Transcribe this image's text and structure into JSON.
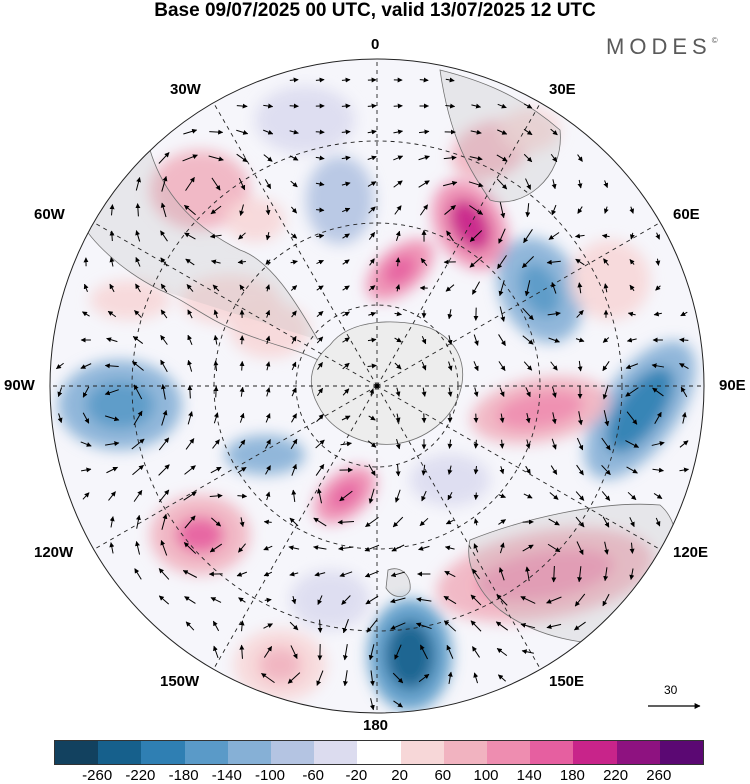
{
  "header": {
    "title": "Base 09/07/2025 00 UTC, valid 13/07/2025 12 UTC",
    "brand": "MODES",
    "brand_mark": "©"
  },
  "map": {
    "projection": "south-polar-stereographic",
    "longitude_labels": {
      "top": "0",
      "top_right": "30E",
      "right_upper": "60E",
      "right": "90E",
      "right_lower": "120E",
      "bottom_right": "150E",
      "bottom": "180",
      "bottom_left": "150W",
      "left_lower": "120W",
      "left": "90W",
      "left_upper": "60W",
      "top_left": "30W"
    },
    "reference_vector_value": "30"
  },
  "colorbar": {
    "colors": [
      "#12415f",
      "#16608c",
      "#2f7fb3",
      "#5a9ac8",
      "#86b0d6",
      "#b4c4e2",
      "#dcdcef",
      "#ffffff",
      "#f7d7d8",
      "#f1b3c0",
      "#ee8db0",
      "#e65fa0",
      "#c8248a",
      "#8e1280",
      "#5b0873"
    ],
    "ticks": [
      "-260",
      "-220",
      "-180",
      "-140",
      "-100",
      "-60",
      "-20",
      "20",
      "60",
      "100",
      "140",
      "180",
      "220",
      "260"
    ]
  }
}
